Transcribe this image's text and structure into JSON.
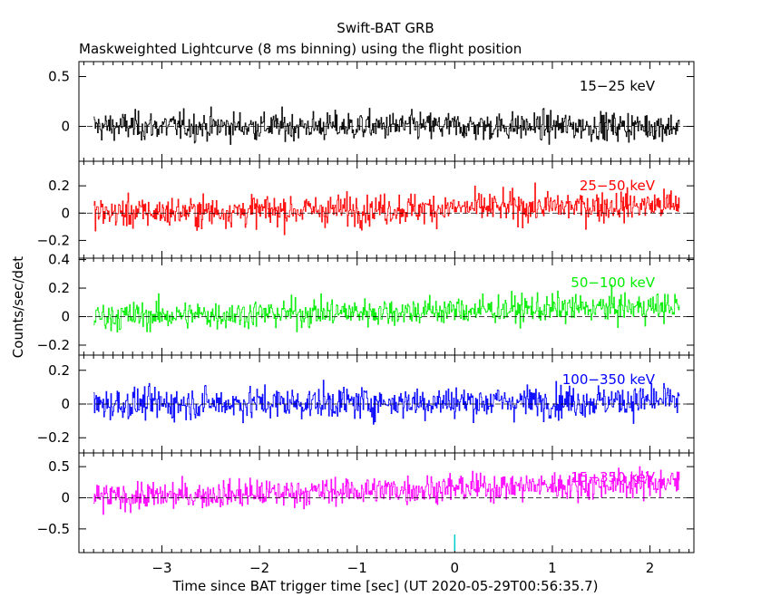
{
  "title": "Swift-BAT GRB",
  "subtitle": "Maskweighted Lightcurve (8 ms binning) using the flight position",
  "chart_data": {
    "type": "line",
    "xlabel": "Time since BAT trigger time [sec] (UT 2020-05-29T00:56:35.7)",
    "ylabel": "Counts/sec/det",
    "xlim": [
      -3.85,
      2.45
    ],
    "x_ticks": [
      -3,
      -2,
      -1,
      0,
      1,
      2
    ],
    "x_tick_labels": [
      "−3",
      "−2",
      "−1",
      "0",
      "1",
      "2"
    ],
    "x_range_of_data": [
      -3.7,
      2.3
    ],
    "bin_width_sec": 0.008,
    "trigger_marker_x": 0,
    "panels": [
      {
        "name": "15-25 keV",
        "label": "15−25 keV",
        "color": "#000000",
        "ylim": [
          -0.35,
          0.65
        ],
        "y_ticks": [
          0.5,
          0
        ],
        "y_tick_labels": [
          "0.5",
          "0"
        ],
        "mean": 0.0,
        "noise": 0.12,
        "trend": 0.0
      },
      {
        "name": "25-50 keV",
        "label": "25−50 keV",
        "color": "#ff0000",
        "ylim": [
          -0.33,
          0.38
        ],
        "y_ticks": [
          0.2,
          0,
          -0.2
        ],
        "y_tick_labels": [
          "0.2",
          "0",
          "−0.2"
        ],
        "mean": 0.0,
        "noise": 0.095,
        "trend": 0.06
      },
      {
        "name": "50-100 keV",
        "label": "50−100 keV",
        "color": "#00ee00",
        "ylim": [
          -0.27,
          0.41
        ],
        "y_ticks": [
          0.4,
          0.2,
          0,
          -0.2
        ],
        "y_tick_labels": [
          "0.4",
          "0.2",
          "0",
          "−0.2"
        ],
        "mean": 0.0,
        "noise": 0.085,
        "trend": 0.07
      },
      {
        "name": "100-350 keV",
        "label": "100−350 keV",
        "color": "#0000ff",
        "ylim": [
          -0.29,
          0.29
        ],
        "y_ticks": [
          0.2,
          0,
          -0.2
        ],
        "y_tick_labels": [
          "0.2",
          "0",
          "−0.2"
        ],
        "mean": 0.0,
        "noise": 0.08,
        "trend": 0.02
      },
      {
        "name": "15-350 keV",
        "label": "15−350 keV",
        "color": "#ff00ff",
        "ylim": [
          -0.88,
          0.72
        ],
        "y_ticks": [
          0.5,
          0,
          -0.5
        ],
        "y_tick_labels": [
          "0.5",
          "0",
          "−0.5"
        ],
        "mean": 0.0,
        "noise": 0.19,
        "trend": 0.25
      }
    ]
  }
}
